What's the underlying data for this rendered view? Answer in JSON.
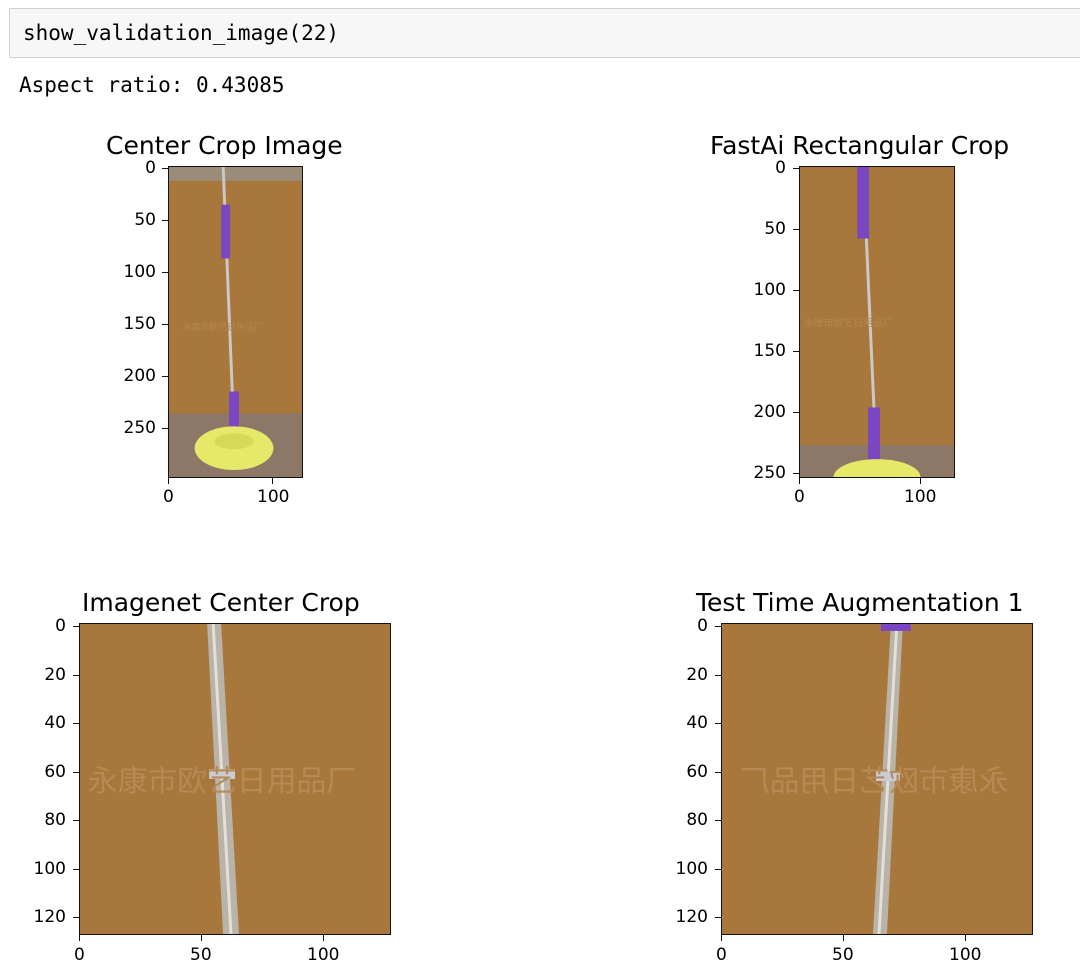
{
  "cell": {
    "code": "show_validation_image(22)"
  },
  "output": {
    "aspect_text": "Aspect ratio: 0.43085"
  },
  "plots": [
    {
      "title": "Center Crop Image",
      "y_ticks": [
        "0",
        "50",
        "100",
        "150",
        "200",
        "250"
      ],
      "x_ticks": [
        "0",
        "100"
      ],
      "watermark": "永康市欧艺日用品厂"
    },
    {
      "title": "FastAi Rectangular Crop",
      "y_ticks": [
        "0",
        "50",
        "100",
        "150",
        "200",
        "250"
      ],
      "x_ticks": [
        "0",
        "100"
      ],
      "watermark": "永康市欧艺日用品厂"
    },
    {
      "title": "Imagenet Center Crop",
      "y_ticks": [
        "0",
        "20",
        "40",
        "60",
        "80",
        "100",
        "120"
      ],
      "x_ticks": [
        "0",
        "50",
        "100"
      ],
      "watermark": "永康市欧艺日用品厂"
    },
    {
      "title": "Test Time Augmentation 1",
      "y_ticks": [
        "0",
        "20",
        "40",
        "60",
        "80",
        "100",
        "120"
      ],
      "x_ticks": [
        "0",
        "50",
        "100"
      ],
      "watermark": "永康市欧艺日用品厂"
    }
  ],
  "colors": {
    "background_wall": "#a8773c",
    "mop_handle_purple": "#7b46c2",
    "mop_head_yellow": "#e6e86a"
  }
}
